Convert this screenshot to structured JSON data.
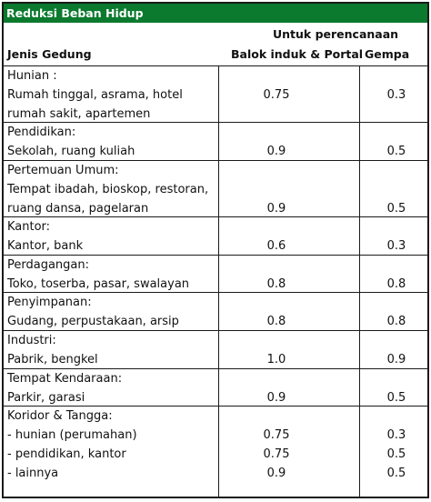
{
  "title": "Reduksi Beban Hidup",
  "header": {
    "col1": "Jenis Gedung",
    "group": "Untuk perencanaan",
    "col2": "Balok induk & Portal",
    "col3": "Gempa"
  },
  "rows": [
    {
      "lines": [
        "Hunian :",
        "Rumah tinggal, asrama, hotel",
        "rumah sakit, apartemen"
      ],
      "portal": "0.75",
      "gempa": "0.3"
    },
    {
      "lines": [
        "Pendidikan:",
        "Sekolah, ruang kuliah"
      ],
      "portal": "0.9",
      "gempa": "0.5"
    },
    {
      "lines": [
        "Pertemuan Umum:",
        "Tempat ibadah, bioskop, restoran,",
        "ruang dansa, pagelaran"
      ],
      "portal": "0.9",
      "gempa": "0.5"
    },
    {
      "lines": [
        "Kantor:",
        "Kantor, bank"
      ],
      "portal": "0.6",
      "gempa": "0.3"
    },
    {
      "lines": [
        "Perdagangan:",
        "Toko, toserba, pasar, swalayan"
      ],
      "portal": "0.8",
      "gempa": "0.8"
    },
    {
      "lines": [
        "Penyimpanan:",
        "Gudang, perpustakaan, arsip"
      ],
      "portal": "0.8",
      "gempa": "0.8"
    },
    {
      "lines": [
        "Industri:",
        "Pabrik, bengkel"
      ],
      "portal": "1.0",
      "gempa": "0.9"
    },
    {
      "lines": [
        "Tempat Kendaraan:",
        "Parkir, garasi"
      ],
      "portal": "0.9",
      "gempa": "0.5"
    },
    {
      "lines": [
        "Koridor & Tangga:",
        "- hunian (perumahan)",
        "- pendidikan, kantor",
        "- lainnya"
      ],
      "portal": [
        "",
        "0.75",
        "0.75",
        "0.9"
      ],
      "gempa": [
        "",
        "0.3",
        "0.5",
        "0.5"
      ]
    }
  ]
}
